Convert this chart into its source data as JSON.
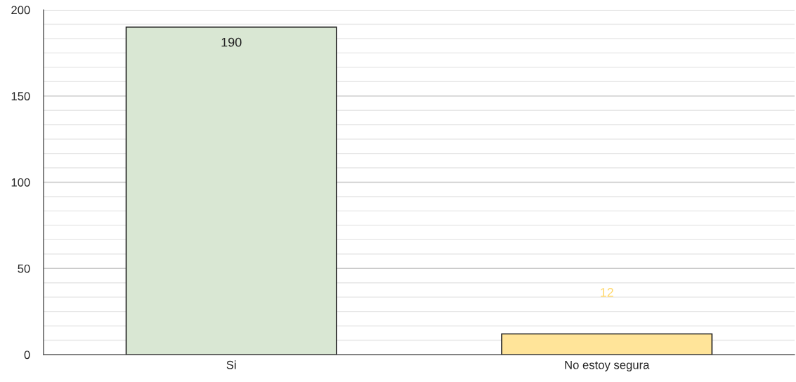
{
  "chart_data": {
    "type": "bar",
    "categories": [
      "Si",
      "No estoy segura"
    ],
    "values": [
      190,
      12
    ],
    "colors": [
      "#d9e7d3",
      "#ffe499"
    ],
    "ylim": [
      0,
      200
    ],
    "yticks": [
      0,
      50,
      100,
      150,
      200
    ],
    "grid": "y",
    "data_labels": true
  }
}
